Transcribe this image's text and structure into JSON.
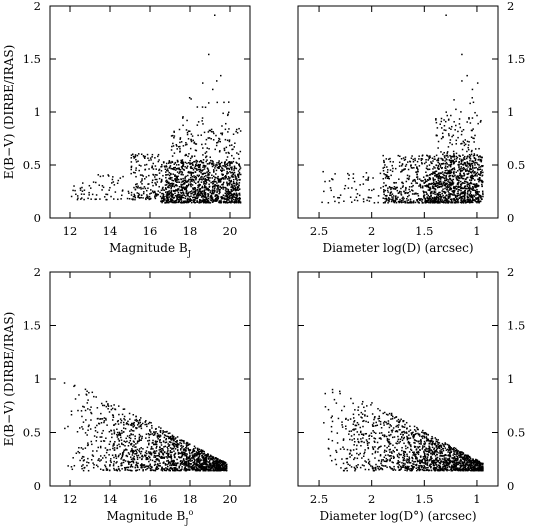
{
  "chart_data": [
    {
      "type": "scatter",
      "panel": "top-left",
      "xlabel": "Magnitude B",
      "xlabel_sub": "J",
      "xlabel_sup": "",
      "ylabel": "E(B−V) (DIRBE/IRAS)",
      "xlim": [
        11,
        21
      ],
      "ylim": [
        0,
        2
      ],
      "x_reversed": false,
      "xticks": [
        12,
        14,
        16,
        18,
        20
      ],
      "yticks": [
        0,
        0.5,
        1,
        1.5,
        2
      ],
      "ytick_side": "left",
      "clusters": [
        {
          "x": [
            12,
            15
          ],
          "y": [
            0.18,
            0.42
          ],
          "n": 70
        },
        {
          "x": [
            15,
            16.5
          ],
          "y": [
            0.18,
            0.62
          ],
          "n": 160
        },
        {
          "x": [
            16.5,
            20.5
          ],
          "y": [
            0.15,
            0.55
          ],
          "n": 1000
        },
        {
          "x": [
            17,
            20.5
          ],
          "y": [
            0.2,
            0.85
          ],
          "n": 300
        },
        {
          "x": [
            17.5,
            20
          ],
          "y": [
            0.5,
            1.15
          ],
          "n": 60
        }
      ],
      "outliers": [
        [
          19.2,
          1.92
        ],
        [
          18.9,
          1.55
        ],
        [
          19.5,
          1.35
        ],
        [
          19.3,
          1.3
        ],
        [
          19.1,
          1.22
        ],
        [
          18.6,
          1.28
        ],
        [
          17.6,
          0.95
        ],
        [
          19.9,
          1.1
        ]
      ]
    },
    {
      "type": "scatter",
      "panel": "top-right",
      "xlabel": "Diameter log(D) (arcsec)",
      "xlabel_sub": "",
      "xlabel_sup": "",
      "ylabel": "",
      "xlim": [
        2.7,
        0.8
      ],
      "ylim": [
        0,
        2
      ],
      "x_reversed": true,
      "xticks": [
        2.5,
        2,
        1.5,
        1
      ],
      "yticks": [
        0,
        0.5,
        1,
        1.5,
        2
      ],
      "ytick_side": "right",
      "clusters": [
        {
          "x": [
            2.5,
            1.9
          ],
          "y": [
            0.15,
            0.45
          ],
          "n": 60
        },
        {
          "x": [
            1.9,
            1.5
          ],
          "y": [
            0.15,
            0.6
          ],
          "n": 300
        },
        {
          "x": [
            1.5,
            0.95
          ],
          "y": [
            0.15,
            0.6
          ],
          "n": 900
        },
        {
          "x": [
            1.4,
            0.95
          ],
          "y": [
            0.3,
            0.95
          ],
          "n": 200
        },
        {
          "x": [
            1.3,
            1.0
          ],
          "y": [
            0.5,
            1.25
          ],
          "n": 40
        }
      ],
      "outliers": [
        [
          1.3,
          1.92
        ],
        [
          1.15,
          1.55
        ],
        [
          1.1,
          1.35
        ],
        [
          1.15,
          1.3
        ],
        [
          1.05,
          1.22
        ],
        [
          1.0,
          1.28
        ],
        [
          1.05,
          0.95
        ]
      ]
    },
    {
      "type": "scatter",
      "panel": "bottom-left",
      "xlabel": "Magnitude B",
      "xlabel_sub": "J",
      "xlabel_sup": "o",
      "ylabel": "E(B−V) (DIRBE/IRAS)",
      "xlim": [
        11,
        21
      ],
      "ylim": [
        0,
        2
      ],
      "x_reversed": false,
      "xticks": [
        12,
        14,
        16,
        18,
        20
      ],
      "yticks": [
        0,
        0.5,
        1,
        1.5,
        2
      ],
      "ytick_side": "left",
      "band": {
        "x0": 11.5,
        "x1": 19.8,
        "ytop0": 1.05,
        "ytop1": 0.22,
        "ymin": 0.15,
        "n": 1600,
        "skew": 0.55
      }
    },
    {
      "type": "scatter",
      "panel": "bottom-right",
      "xlabel": "Diameter log(D°) (arcsec)",
      "xlabel_sub": "",
      "xlabel_sup": "",
      "ylabel": "",
      "xlim": [
        2.7,
        0.8
      ],
      "ylim": [
        0,
        2
      ],
      "x_reversed": true,
      "xticks": [
        2.5,
        2,
        1.5,
        1
      ],
      "yticks": [
        0,
        0.5,
        1,
        1.5,
        2
      ],
      "ytick_side": "right",
      "band": {
        "x0": 2.5,
        "x1": 0.95,
        "ytop0": 1.05,
        "ytop1": 0.22,
        "ymin": 0.15,
        "n": 1500,
        "skew": 0.55
      }
    }
  ]
}
